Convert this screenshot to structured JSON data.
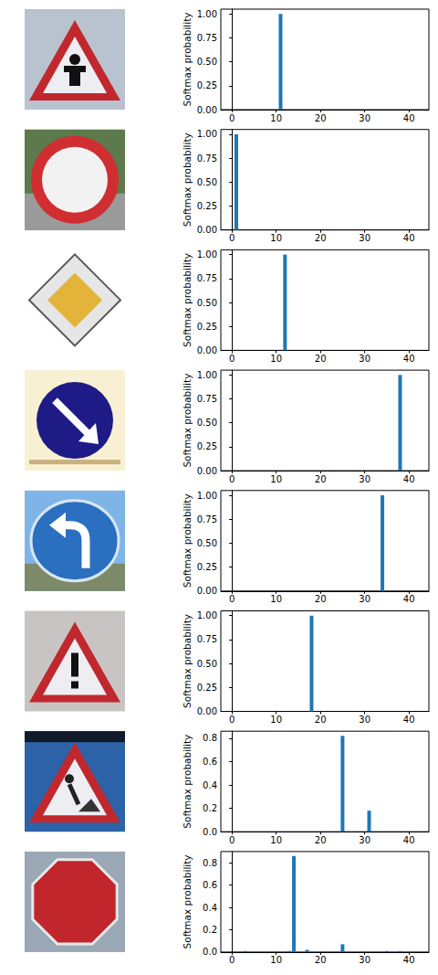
{
  "chart_data": [
    {
      "type": "bar",
      "y_label": "Softmax probability",
      "x": [
        11
      ],
      "values": [
        1.0
      ],
      "color": "#1f77b4",
      "grid": false,
      "xlim": [
        -2.5,
        44.5
      ],
      "xticks": [
        0,
        10,
        20,
        30,
        40
      ],
      "ylim": [
        0,
        1.05
      ],
      "yticks": [
        {
          "value": 0,
          "label": "0.00"
        },
        {
          "value": 0.25,
          "label": "0.25"
        },
        {
          "value": 0.5,
          "label": "0.50"
        },
        {
          "value": 0.75,
          "label": "0.75"
        },
        {
          "value": 1,
          "label": "1.00"
        }
      ]
    },
    {
      "type": "bar",
      "y_label": "Softmax probability",
      "x": [
        1
      ],
      "values": [
        1.0
      ],
      "color": "#1f77b4",
      "grid": false,
      "xlim": [
        -2.5,
        44.5
      ],
      "xticks": [
        0,
        10,
        20,
        30,
        40
      ],
      "ylim": [
        0,
        1.05
      ],
      "yticks": [
        {
          "value": 0,
          "label": "0.00"
        },
        {
          "value": 0.25,
          "label": "0.25"
        },
        {
          "value": 0.5,
          "label": "0.50"
        },
        {
          "value": 0.75,
          "label": "0.75"
        },
        {
          "value": 1,
          "label": "1.00"
        }
      ]
    },
    {
      "type": "bar",
      "y_label": "Softmax probability",
      "x": [
        12
      ],
      "values": [
        1.0
      ],
      "color": "#1f77b4",
      "grid": false,
      "xlim": [
        -2.5,
        44.5
      ],
      "xticks": [
        0,
        10,
        20,
        30,
        40
      ],
      "ylim": [
        0,
        1.05
      ],
      "yticks": [
        {
          "value": 0,
          "label": "0.00"
        },
        {
          "value": 0.25,
          "label": "0.25"
        },
        {
          "value": 0.5,
          "label": "0.50"
        },
        {
          "value": 0.75,
          "label": "0.75"
        },
        {
          "value": 1,
          "label": "1.00"
        }
      ]
    },
    {
      "type": "bar",
      "y_label": "Softmax probability",
      "x": [
        38
      ],
      "values": [
        1.0
      ],
      "color": "#1f77b4",
      "grid": false,
      "xlim": [
        -2.5,
        44.5
      ],
      "xticks": [
        0,
        10,
        20,
        30,
        40
      ],
      "ylim": [
        0,
        1.05
      ],
      "yticks": [
        {
          "value": 0,
          "label": "0.00"
        },
        {
          "value": 0.25,
          "label": "0.25"
        },
        {
          "value": 0.5,
          "label": "0.50"
        },
        {
          "value": 0.75,
          "label": "0.75"
        },
        {
          "value": 1,
          "label": "1.00"
        }
      ]
    },
    {
      "type": "bar",
      "y_label": "Softmax probability",
      "x": [
        34
      ],
      "values": [
        1.0
      ],
      "color": "#1f77b4",
      "grid": false,
      "xlim": [
        -2.5,
        44.5
      ],
      "xticks": [
        0,
        10,
        20,
        30,
        40
      ],
      "ylim": [
        0,
        1.05
      ],
      "yticks": [
        {
          "value": 0,
          "label": "0.00"
        },
        {
          "value": 0.25,
          "label": "0.25"
        },
        {
          "value": 0.5,
          "label": "0.50"
        },
        {
          "value": 0.75,
          "label": "0.75"
        },
        {
          "value": 1,
          "label": "1.00"
        }
      ]
    },
    {
      "type": "bar",
      "y_label": "Softmax probability",
      "x": [
        18
      ],
      "values": [
        1.0
      ],
      "color": "#1f77b4",
      "grid": false,
      "xlim": [
        -2.5,
        44.5
      ],
      "xticks": [
        0,
        10,
        20,
        30,
        40
      ],
      "ylim": [
        0,
        1.05
      ],
      "yticks": [
        {
          "value": 0,
          "label": "0.00"
        },
        {
          "value": 0.25,
          "label": "0.25"
        },
        {
          "value": 0.5,
          "label": "0.50"
        },
        {
          "value": 0.75,
          "label": "0.75"
        },
        {
          "value": 1,
          "label": "1.00"
        }
      ]
    },
    {
      "type": "bar",
      "y_label": "Softmax probability",
      "x": [
        25,
        31
      ],
      "values": [
        0.82,
        0.18
      ],
      "color": "#1f77b4",
      "grid": false,
      "xlim": [
        -2.5,
        44.5
      ],
      "xticks": [
        0,
        10,
        20,
        30,
        40
      ],
      "ylim": [
        0,
        0.86
      ],
      "yticks": [
        {
          "value": 0,
          "label": "0.0"
        },
        {
          "value": 0.2,
          "label": "0.2"
        },
        {
          "value": 0.4,
          "label": "0.4"
        },
        {
          "value": 0.6,
          "label": "0.6"
        },
        {
          "value": 0.8,
          "label": "0.8"
        }
      ]
    },
    {
      "type": "bar",
      "y_label": "Softmax probability",
      "x": [
        3,
        13,
        14,
        17,
        25,
        35,
        38
      ],
      "values": [
        0.01,
        0.01,
        0.86,
        0.02,
        0.07,
        0.01,
        0.01
      ],
      "color": "#1f77b4",
      "grid": false,
      "xlim": [
        -2.5,
        44.5
      ],
      "xticks": [
        0,
        10,
        20,
        30,
        40
      ],
      "ylim": [
        0,
        0.9
      ],
      "yticks": [
        {
          "value": 0,
          "label": "0.0"
        },
        {
          "value": 0.2,
          "label": "0.2"
        },
        {
          "value": 0.4,
          "label": "0.4"
        },
        {
          "value": 0.6,
          "label": "0.6"
        },
        {
          "value": 0.8,
          "label": "0.8"
        }
      ]
    }
  ]
}
